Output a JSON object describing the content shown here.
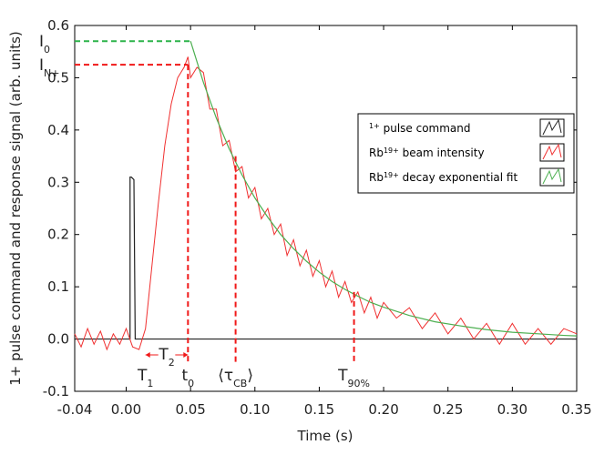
{
  "chart_data": {
    "type": "line",
    "x_label": "Time (s)",
    "y_label": "1+ pulse command and response signal (arb. units)",
    "xlim": [
      -0.04,
      0.35
    ],
    "ylim": [
      -0.1,
      0.6
    ],
    "xticks": [
      -0.04,
      {
        "value": 0,
        "label": "0.00"
      },
      0.05,
      {
        "value": 0.1,
        "label": "0.10"
      },
      0.15,
      {
        "value": 0.2,
        "label": "0.20"
      },
      0.25,
      {
        "value": 0.3,
        "label": "0.30"
      },
      0.35
    ],
    "yticks": [
      -0.1,
      {
        "value": 0,
        "label": "0.0"
      },
      0.1,
      0.2,
      0.3,
      0.4,
      0.5,
      0.6
    ],
    "series": [
      {
        "name": "1+ pulse command",
        "color": "#222222",
        "x": [
          -0.04,
          0.003,
          0.003,
          0.004,
          0.006,
          0.007,
          0.35
        ],
        "values": [
          0,
          0,
          0.31,
          0.31,
          0.305,
          0,
          0
        ]
      },
      {
        "name": "Rb19+ beam intensity",
        "color": "#f03030",
        "x": [
          -0.04,
          -0.035,
          -0.03,
          -0.025,
          -0.02,
          -0.015,
          -0.01,
          -0.005,
          0,
          0.005,
          0.01,
          0.015,
          0.02,
          0.025,
          0.03,
          0.035,
          0.04,
          0.045,
          0.048,
          0.05,
          0.055,
          0.06,
          0.065,
          0.07,
          0.075,
          0.08,
          0.085,
          0.09,
          0.095,
          0.1,
          0.105,
          0.11,
          0.115,
          0.12,
          0.125,
          0.13,
          0.135,
          0.14,
          0.145,
          0.15,
          0.155,
          0.16,
          0.165,
          0.17,
          0.175,
          0.18,
          0.185,
          0.19,
          0.195,
          0.2,
          0.21,
          0.22,
          0.23,
          0.24,
          0.25,
          0.26,
          0.27,
          0.28,
          0.29,
          0.3,
          0.31,
          0.32,
          0.33,
          0.34,
          0.35
        ],
        "values": [
          0.01,
          -0.015,
          0.02,
          -0.01,
          0.015,
          -0.02,
          0.01,
          -0.01,
          0.02,
          -0.015,
          -0.02,
          0.02,
          0.14,
          0.26,
          0.37,
          0.45,
          0.5,
          0.52,
          0.54,
          0.5,
          0.52,
          0.51,
          0.44,
          0.44,
          0.37,
          0.38,
          0.32,
          0.33,
          0.27,
          0.29,
          0.23,
          0.25,
          0.2,
          0.22,
          0.16,
          0.19,
          0.14,
          0.17,
          0.12,
          0.15,
          0.1,
          0.13,
          0.08,
          0.11,
          0.07,
          0.09,
          0.05,
          0.08,
          0.04,
          0.07,
          0.04,
          0.06,
          0.02,
          0.05,
          0.01,
          0.04,
          0,
          0.03,
          -0.01,
          0.03,
          -0.01,
          0.02,
          -0.01,
          0.02,
          0.01
        ]
      },
      {
        "name": "Rb19+ decay exponential fit",
        "color": "#4caf50",
        "x": [
          0.05,
          0.06,
          0.07,
          0.08,
          0.09,
          0.1,
          0.11,
          0.12,
          0.13,
          0.14,
          0.15,
          0.16,
          0.17,
          0.18,
          0.19,
          0.2,
          0.22,
          0.24,
          0.26,
          0.28,
          0.3,
          0.32,
          0.34,
          0.35
        ],
        "values": [
          0.57,
          0.491,
          0.423,
          0.364,
          0.314,
          0.27,
          0.233,
          0.2,
          0.173,
          0.149,
          0.128,
          0.11,
          0.095,
          0.082,
          0.07,
          0.061,
          0.045,
          0.033,
          0.025,
          0.018,
          0.013,
          0.01,
          0.007,
          0.006
        ]
      }
    ],
    "reference_lines": [
      {
        "orientation": "h",
        "value": 0.57,
        "to": 0.05,
        "color": "#2db34a",
        "label": [
          "I",
          "0"
        ]
      },
      {
        "orientation": "h",
        "value": 0.525,
        "to": 0.048,
        "color": "#f01818",
        "label": [
          "I",
          "N+"
        ]
      },
      {
        "orientation": "v",
        "value": 0.015,
        "color": "#f01818",
        "label": [
          "T",
          "1"
        ]
      },
      {
        "orientation": "v",
        "value": 0.048,
        "to": 0.525,
        "color": "#f01818",
        "label": [
          "t",
          "0"
        ]
      },
      {
        "orientation": "v",
        "value": 0.085,
        "to": 0.35,
        "color": "#f01818",
        "label": [
          "⟨τ",
          "CB",
          "⟩"
        ]
      },
      {
        "orientation": "v",
        "value": 0.177,
        "to": 0.09,
        "color": "#f01818",
        "label": [
          "T",
          "90%"
        ]
      }
    ],
    "spans": [
      {
        "range": [
          0.015,
          0.048
        ],
        "color": "#f01818",
        "label": [
          "T",
          "2"
        ]
      }
    ]
  }
}
